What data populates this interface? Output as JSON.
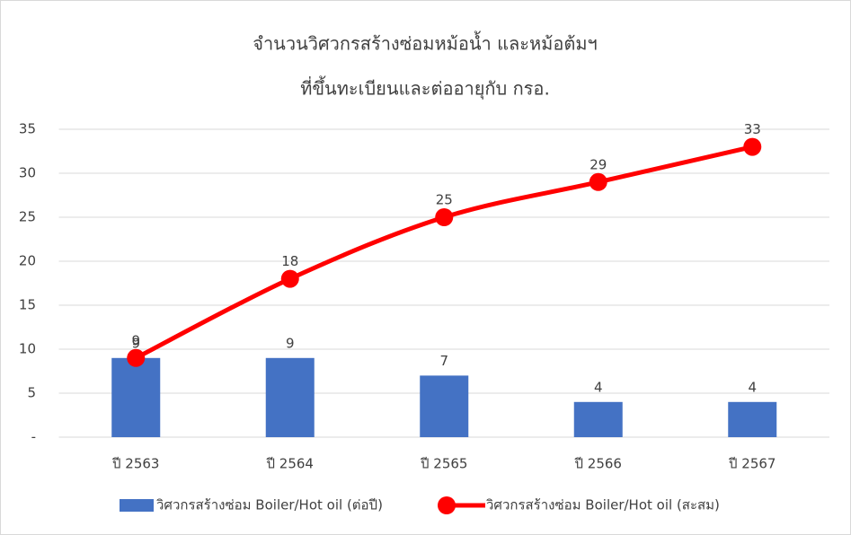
{
  "chart_data": {
    "type": "combo",
    "title": [
      "จำนวนวิศวกรสร้างซ่อมหม้อน้ำ และหม้อต้มฯ",
      "ที่ขึ้นทะเบียนและต่ออายุกับ กรอ."
    ],
    "categories": [
      "ปี 2563",
      "ปี 2564",
      "ปี 2565",
      "ปี 2566",
      "ปี 2567"
    ],
    "series": [
      {
        "name": "วิศวกรสร้างซ่อม Boiler/Hot oil (ต่อปี)",
        "type": "bar",
        "color": "#4472c4",
        "values": [
          9,
          9,
          7,
          4,
          4
        ]
      },
      {
        "name": "วิศวกรสร้างซ่อม Boiler/Hot oil (สะสม)",
        "type": "line",
        "color": "#ff0000",
        "values": [
          9,
          18,
          25,
          29,
          33
        ]
      }
    ],
    "ylim": [
      0,
      35
    ],
    "yticks": [
      {
        "value": 0,
        "label": "-"
      },
      5,
      10,
      15,
      20,
      25,
      30,
      35
    ],
    "grid": true,
    "legend": "bottom"
  }
}
